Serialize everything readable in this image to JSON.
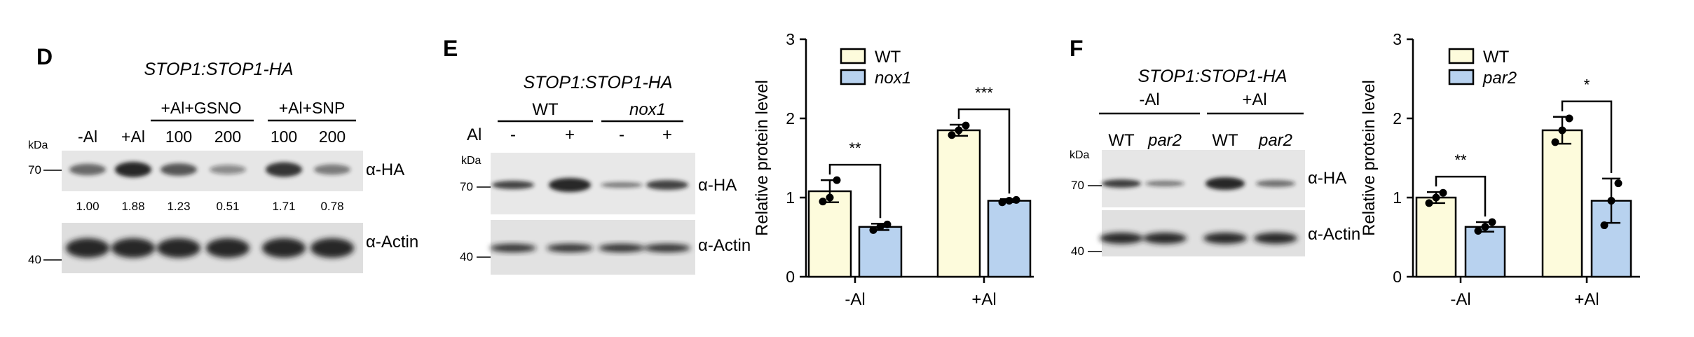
{
  "panel_labels": {
    "D": "D",
    "E": "E",
    "F": "F"
  },
  "blotD": {
    "title": "STOP1:STOP1-HA",
    "group_gsno": "+Al+GSNO",
    "group_snp": "+Al+SNP",
    "lanes": [
      "-Al",
      "+Al",
      "100",
      "200",
      "100",
      "200"
    ],
    "kda": "kDa",
    "marker70": "70",
    "marker40": "40",
    "ha_label": "α-HA",
    "actin_label": "α-Actin",
    "quant": [
      "1.00",
      "1.88",
      "1.23",
      "0.51",
      "1.71",
      "0.78"
    ],
    "ha_intensity": [
      1.0,
      1.88,
      1.23,
      0.51,
      1.71,
      0.78
    ]
  },
  "blotE": {
    "title": "STOP1:STOP1-HA",
    "group_wt": "WT",
    "group_mut": "nox1",
    "al_label": "Al",
    "lanes": [
      "-",
      "+",
      "-",
      "+"
    ],
    "kda": "kDa",
    "marker70": "70",
    "marker40": "40",
    "ha_label": "α-HA",
    "actin_label": "α-Actin"
  },
  "blotF": {
    "title": "STOP1:STOP1-HA",
    "group_minus": "-Al",
    "group_plus": "+Al",
    "lanes": [
      "WT",
      "par2",
      "WT",
      "par2"
    ],
    "kda": "kDa",
    "marker70": "70",
    "marker40": "40",
    "ha_label": "α-HA",
    "actin_label": "α-Actin"
  },
  "chart_data": [
    {
      "type": "bar",
      "categories": [
        "-Al",
        "+Al"
      ],
      "ylabel": "Relative protein level",
      "ylim": [
        0,
        3
      ],
      "yticks": [
        "0",
        "1",
        "2",
        "3"
      ],
      "legend_position": "top-left",
      "series": [
        {
          "name": "WT",
          "values": [
            1.08,
            1.85
          ],
          "errors": [
            0.14,
            0.07
          ],
          "points": [
            [
              0.95,
              1.0,
              1.22
            ],
            [
              1.79,
              1.85,
              1.91
            ]
          ]
        },
        {
          "name": "nox1",
          "values": [
            0.63,
            0.96
          ],
          "errors": [
            0.04,
            0.02
          ],
          "points": [
            [
              0.59,
              0.63,
              0.66
            ],
            [
              0.94,
              0.96,
              0.97
            ]
          ]
        }
      ],
      "significance": [
        "**",
        "***"
      ],
      "colors": {
        "WT": "#fdfbdc",
        "nox1": "#b8d2ef"
      }
    },
    {
      "type": "bar",
      "categories": [
        "-Al",
        "+Al"
      ],
      "ylabel": "Relative protein level",
      "ylim": [
        0,
        3
      ],
      "yticks": [
        "0",
        "1",
        "2",
        "3"
      ],
      "legend_position": "top-left",
      "series": [
        {
          "name": "WT",
          "values": [
            1.0,
            1.85
          ],
          "errors": [
            0.07,
            0.17
          ],
          "points": [
            [
              0.93,
              1.0,
              1.06
            ],
            [
              1.7,
              1.85,
              2.0
            ]
          ]
        },
        {
          "name": "par2",
          "values": [
            0.63,
            0.96
          ],
          "errors": [
            0.06,
            0.28
          ],
          "points": [
            [
              0.58,
              0.63,
              0.69
            ],
            [
              0.65,
              0.96,
              1.18
            ]
          ]
        }
      ],
      "significance": [
        "**",
        "*"
      ],
      "colors": {
        "WT": "#fdfbdc",
        "par2": "#b8d2ef"
      }
    }
  ]
}
